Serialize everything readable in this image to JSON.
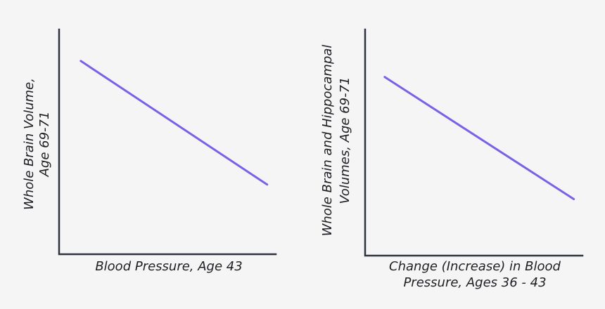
{
  "chart_data": [
    {
      "type": "line",
      "xlabel": "Blood Pressure, Age 43",
      "ylabel": [
        "Whole Brain Volume,",
        "Age 69-71"
      ],
      "ylim": [
        0,
        10
      ],
      "xlim": [
        0,
        10
      ],
      "grid": false,
      "line_color": "#7b61e8",
      "series": [
        {
          "x": [
            1,
            9.6
          ],
          "y": [
            8.6,
            3.1
          ]
        }
      ]
    },
    {
      "type": "line",
      "xlabel": [
        "Change (Increase) in Blood",
        "Pressure, Ages 36 - 43"
      ],
      "ylabel": [
        "Whole Brain and Hippocampal",
        "Volumes, Age 69-71"
      ],
      "ylim": [
        0,
        10
      ],
      "xlim": [
        0,
        10
      ],
      "grid": false,
      "line_color": "#7b61e8",
      "series": [
        {
          "x": [
            0.9,
            9.6
          ],
          "y": [
            7.9,
            2.5
          ]
        }
      ]
    }
  ]
}
